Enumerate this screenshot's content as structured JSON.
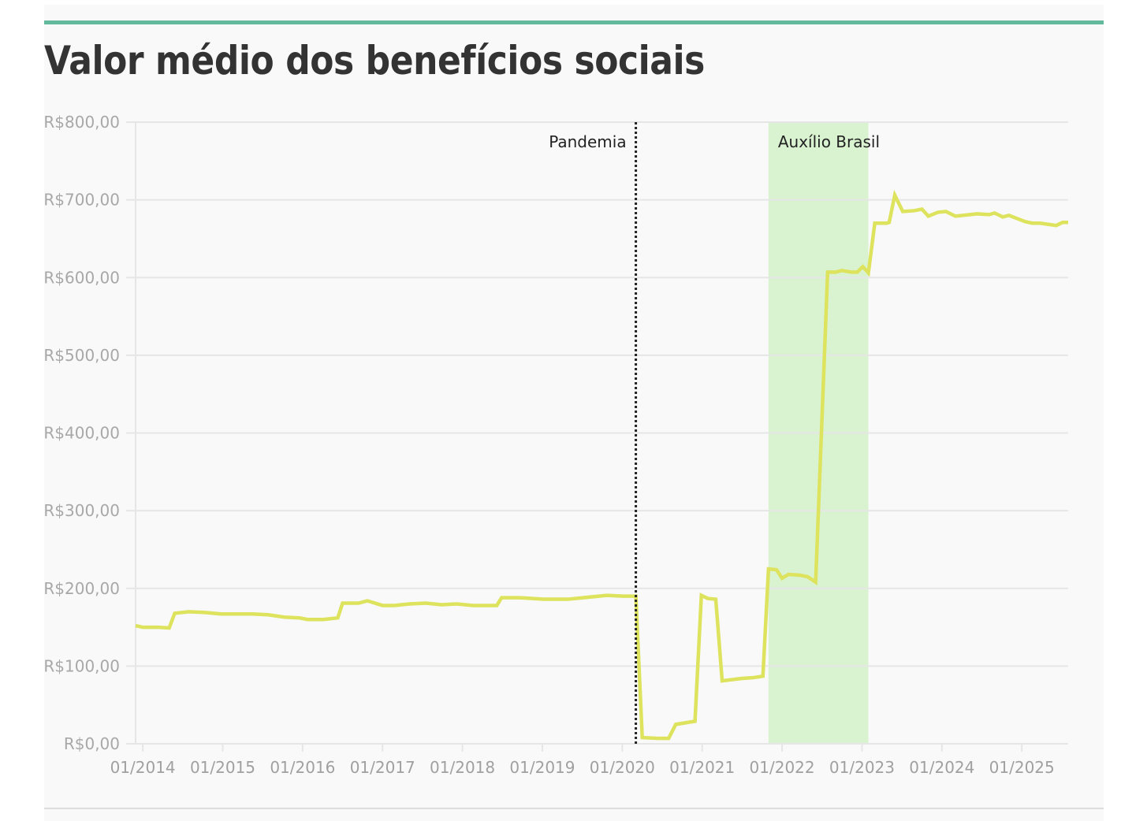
{
  "chart_data": {
    "type": "line",
    "title": "Valor médio dos benefícios sociais",
    "xlabel": "",
    "ylabel": "",
    "xlim": [
      2013.91,
      2025.58
    ],
    "ylim": [
      0,
      800
    ],
    "grid": true,
    "y_ticks": [
      0,
      100,
      200,
      300,
      400,
      500,
      600,
      700,
      800
    ],
    "y_tick_labels": [
      "R$0,00",
      "R$100,00",
      "R$200,00",
      "R$300,00",
      "R$400,00",
      "R$500,00",
      "R$600,00",
      "R$700,00",
      "R$800,00"
    ],
    "x_ticks": [
      2014,
      2015,
      2016,
      2017,
      2018,
      2019,
      2020,
      2021,
      2022,
      2023,
      2024,
      2025
    ],
    "x_tick_labels": [
      "01/2014",
      "01/2015",
      "01/2016",
      "01/2017",
      "01/2018",
      "01/2019",
      "01/2020",
      "01/2021",
      "01/2022",
      "01/2023",
      "01/2024",
      "01/2025"
    ],
    "series": [
      {
        "name": "Valor médio",
        "color": "#dde35c",
        "points": [
          [
            2013.91,
            152
          ],
          [
            2014.0,
            150
          ],
          [
            2014.19,
            150
          ],
          [
            2014.33,
            149
          ],
          [
            2014.4,
            168
          ],
          [
            2014.58,
            170
          ],
          [
            2014.78,
            169
          ],
          [
            2014.98,
            167
          ],
          [
            2015.37,
            167
          ],
          [
            2015.57,
            166
          ],
          [
            2015.77,
            163
          ],
          [
            2015.96,
            162
          ],
          [
            2016.06,
            160
          ],
          [
            2016.26,
            160
          ],
          [
            2016.44,
            162
          ],
          [
            2016.5,
            181
          ],
          [
            2016.7,
            181
          ],
          [
            2016.81,
            184
          ],
          [
            2017.0,
            178
          ],
          [
            2017.15,
            178
          ],
          [
            2017.34,
            180
          ],
          [
            2017.54,
            181
          ],
          [
            2017.74,
            179
          ],
          [
            2017.93,
            180
          ],
          [
            2018.13,
            178
          ],
          [
            2018.33,
            178
          ],
          [
            2018.43,
            178
          ],
          [
            2018.49,
            188
          ],
          [
            2018.72,
            188
          ],
          [
            2019.02,
            186
          ],
          [
            2019.32,
            186
          ],
          [
            2019.51,
            188
          ],
          [
            2019.81,
            191
          ],
          [
            2020.01,
            190
          ],
          [
            2020.17,
            190
          ],
          [
            2020.25,
            8
          ],
          [
            2020.45,
            7
          ],
          [
            2020.58,
            7
          ],
          [
            2020.67,
            25
          ],
          [
            2020.91,
            29
          ],
          [
            2020.99,
            191
          ],
          [
            2021.07,
            187
          ],
          [
            2021.17,
            186
          ],
          [
            2021.25,
            81
          ],
          [
            2021.49,
            84
          ],
          [
            2021.63,
            85
          ],
          [
            2021.76,
            87
          ],
          [
            2021.83,
            225
          ],
          [
            2021.93,
            224
          ],
          [
            2022.0,
            213
          ],
          [
            2022.08,
            218
          ],
          [
            2022.22,
            217
          ],
          [
            2022.32,
            215
          ],
          [
            2022.42,
            208
          ],
          [
            2022.57,
            607
          ],
          [
            2022.67,
            607
          ],
          [
            2022.75,
            609
          ],
          [
            2022.87,
            607
          ],
          [
            2022.94,
            607
          ],
          [
            2023.01,
            614
          ],
          [
            2023.08,
            606
          ],
          [
            2023.16,
            670
          ],
          [
            2023.31,
            670
          ],
          [
            2023.34,
            671
          ],
          [
            2023.41,
            706
          ],
          [
            2023.51,
            685
          ],
          [
            2023.65,
            686
          ],
          [
            2023.75,
            688
          ],
          [
            2023.83,
            679
          ],
          [
            2023.95,
            684
          ],
          [
            2024.05,
            685
          ],
          [
            2024.17,
            679
          ],
          [
            2024.35,
            681
          ],
          [
            2024.44,
            682
          ],
          [
            2024.59,
            681
          ],
          [
            2024.66,
            683
          ],
          [
            2024.76,
            678
          ],
          [
            2024.84,
            680
          ],
          [
            2024.94,
            676
          ],
          [
            2025.04,
            672
          ],
          [
            2025.13,
            670
          ],
          [
            2025.23,
            670
          ],
          [
            2025.43,
            667
          ],
          [
            2025.51,
            671
          ],
          [
            2025.58,
            671
          ]
        ]
      }
    ],
    "annotations": [
      {
        "type": "vline",
        "x": 2020.17,
        "label": "Pandemia",
        "color": "#222222"
      },
      {
        "type": "band",
        "x0": 2021.83,
        "x1": 2023.08,
        "label": "Auxílio Brasil",
        "color": "#d9f2d0"
      }
    ],
    "accent_color": "#62b99b"
  }
}
